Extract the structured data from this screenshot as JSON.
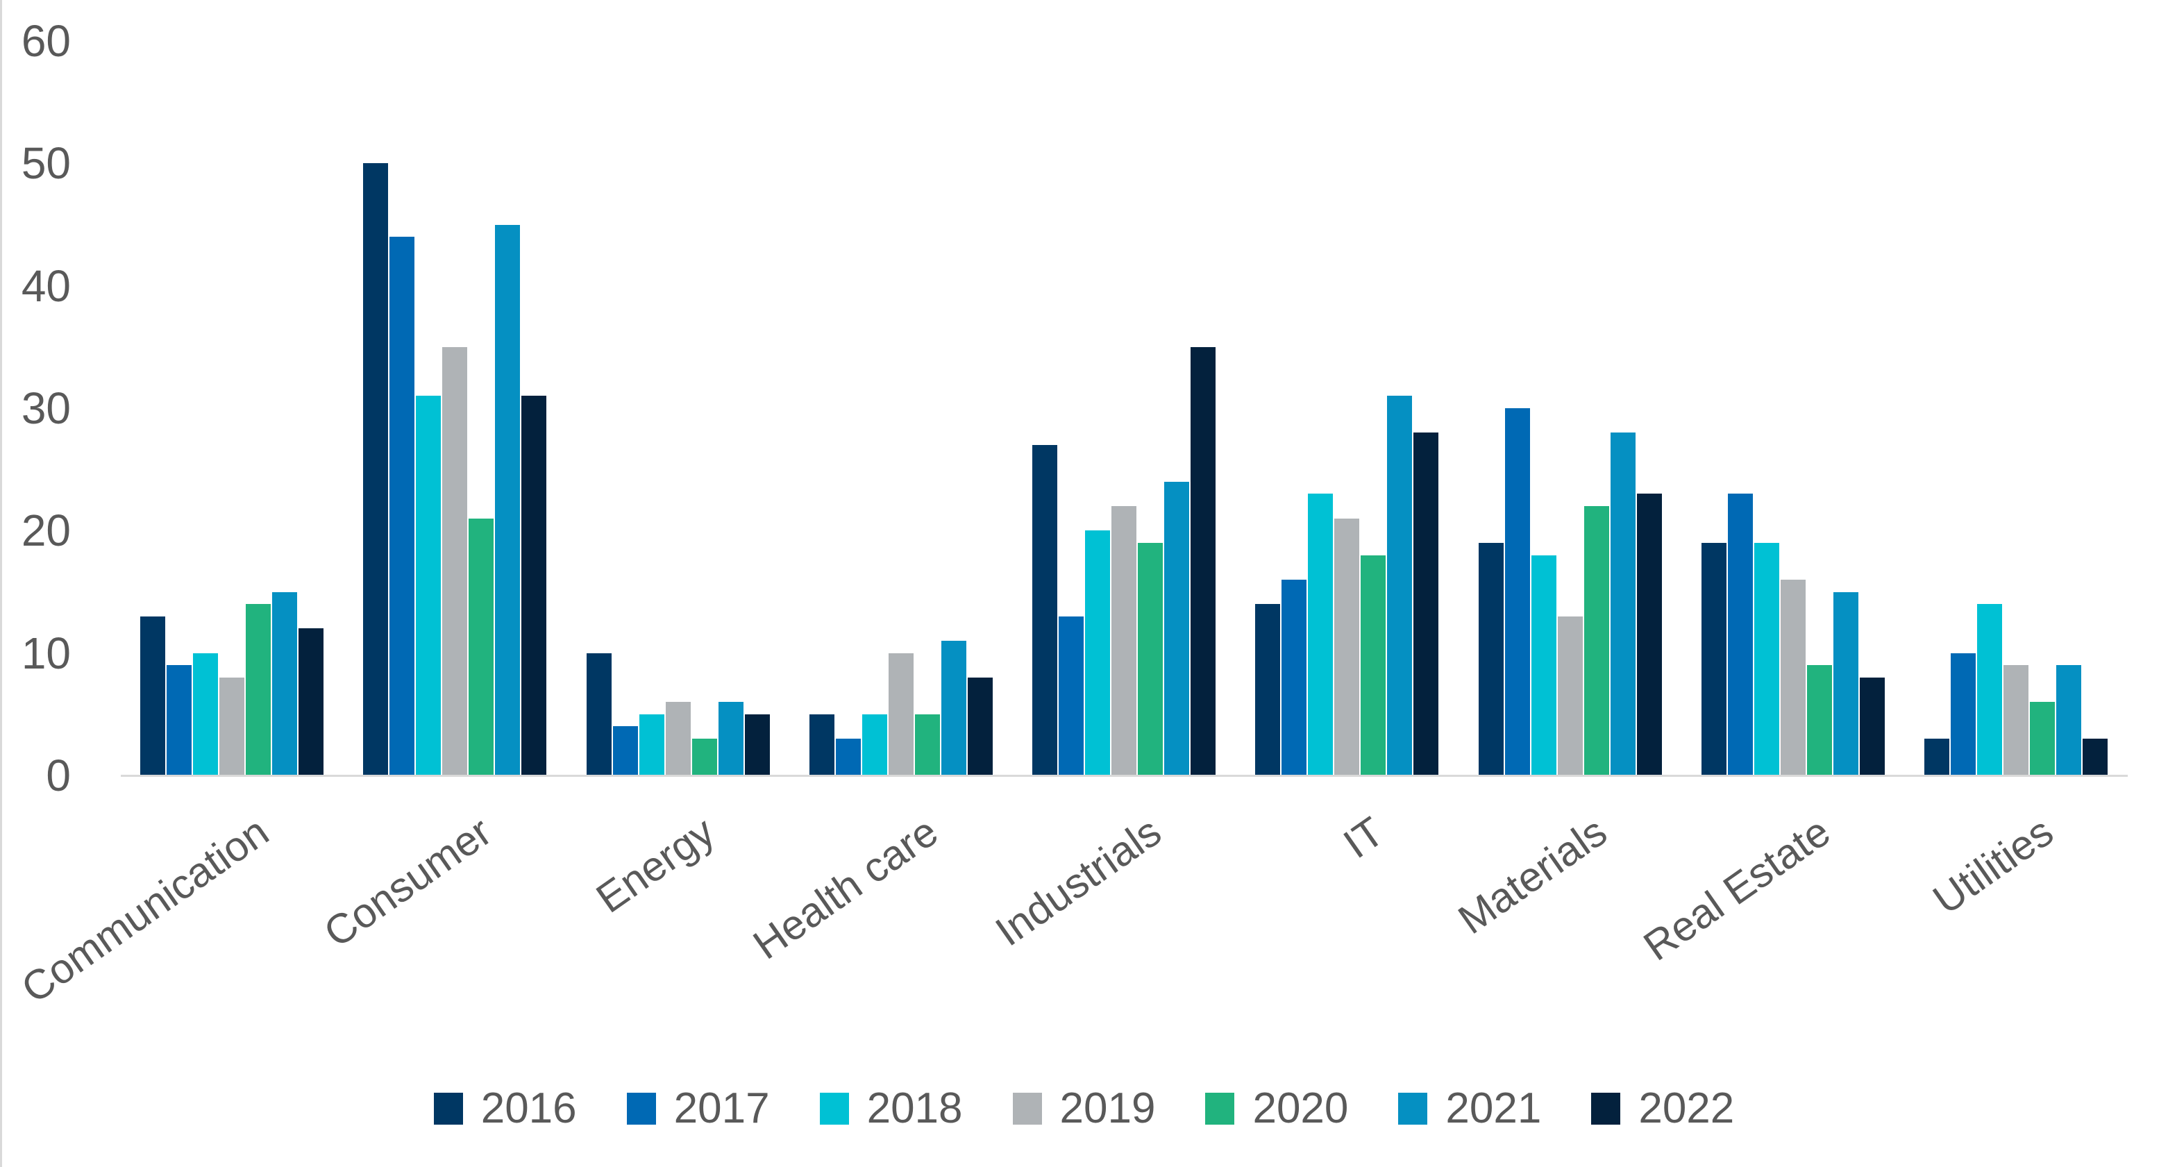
{
  "chart_data": {
    "type": "bar",
    "title": "",
    "xlabel": "",
    "ylabel": "",
    "grid": false,
    "legend_position": "bottom",
    "ylim": [
      0,
      60
    ],
    "yticks": [
      0,
      10,
      20,
      30,
      40,
      50,
      60
    ],
    "categories": [
      "Communication",
      "Consumer",
      "Energy",
      "Health care",
      "Industrials",
      "IT",
      "Materials",
      "Real Estate",
      "Utilities"
    ],
    "series": [
      {
        "name": "2016",
        "color": "#003763",
        "values": [
          13,
          50,
          10,
          5,
          27,
          14,
          19,
          19,
          3
        ]
      },
      {
        "name": "2017",
        "color": "#0069b4",
        "values": [
          9,
          44,
          4,
          3,
          13,
          16,
          30,
          23,
          10
        ]
      },
      {
        "name": "2018",
        "color": "#00c1d4",
        "values": [
          10,
          31,
          5,
          5,
          20,
          23,
          18,
          19,
          14
        ]
      },
      {
        "name": "2019",
        "color": "#afb3b6",
        "values": [
          8,
          35,
          6,
          10,
          22,
          21,
          13,
          16,
          9
        ]
      },
      {
        "name": "2020",
        "color": "#21b37e",
        "values": [
          14,
          21,
          3,
          5,
          19,
          18,
          22,
          9,
          6
        ]
      },
      {
        "name": "2021",
        "color": "#0590c2",
        "values": [
          15,
          45,
          6,
          11,
          24,
          31,
          28,
          15,
          9
        ]
      },
      {
        "name": "2022",
        "color": "#03213d",
        "values": [
          12,
          31,
          5,
          8,
          35,
          28,
          23,
          8,
          3
        ]
      }
    ],
    "colors": {
      "axis_line": "#d9d9d9",
      "text": "#595959",
      "background": "#ffffff"
    }
  }
}
